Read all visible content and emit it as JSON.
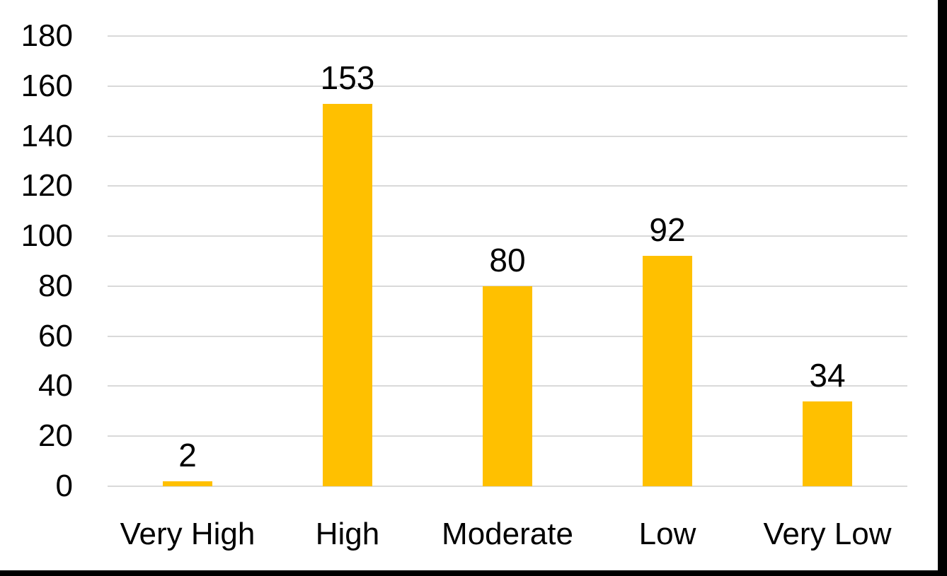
{
  "chart_data": {
    "type": "bar",
    "title": "",
    "xlabel": "",
    "ylabel": "",
    "categories": [
      "Very High",
      "High",
      "Moderate",
      "Low",
      "Very Low"
    ],
    "values": [
      2,
      153,
      80,
      92,
      34
    ],
    "data_labels": [
      "2",
      "153",
      "80",
      "92",
      "34"
    ],
    "ytick_labels": [
      "0",
      "20",
      "40",
      "60",
      "80",
      "100",
      "120",
      "140",
      "160",
      "180"
    ],
    "ylim": [
      0,
      180
    ],
    "ytick_step": 20,
    "grid": true,
    "legend": false,
    "bar_color": "#FFC000",
    "gridline_color": "#D9D9D9",
    "axis_line_color": "#D9D9D9",
    "text_color": "#000000"
  },
  "frame": {
    "border_color": "#000000"
  }
}
